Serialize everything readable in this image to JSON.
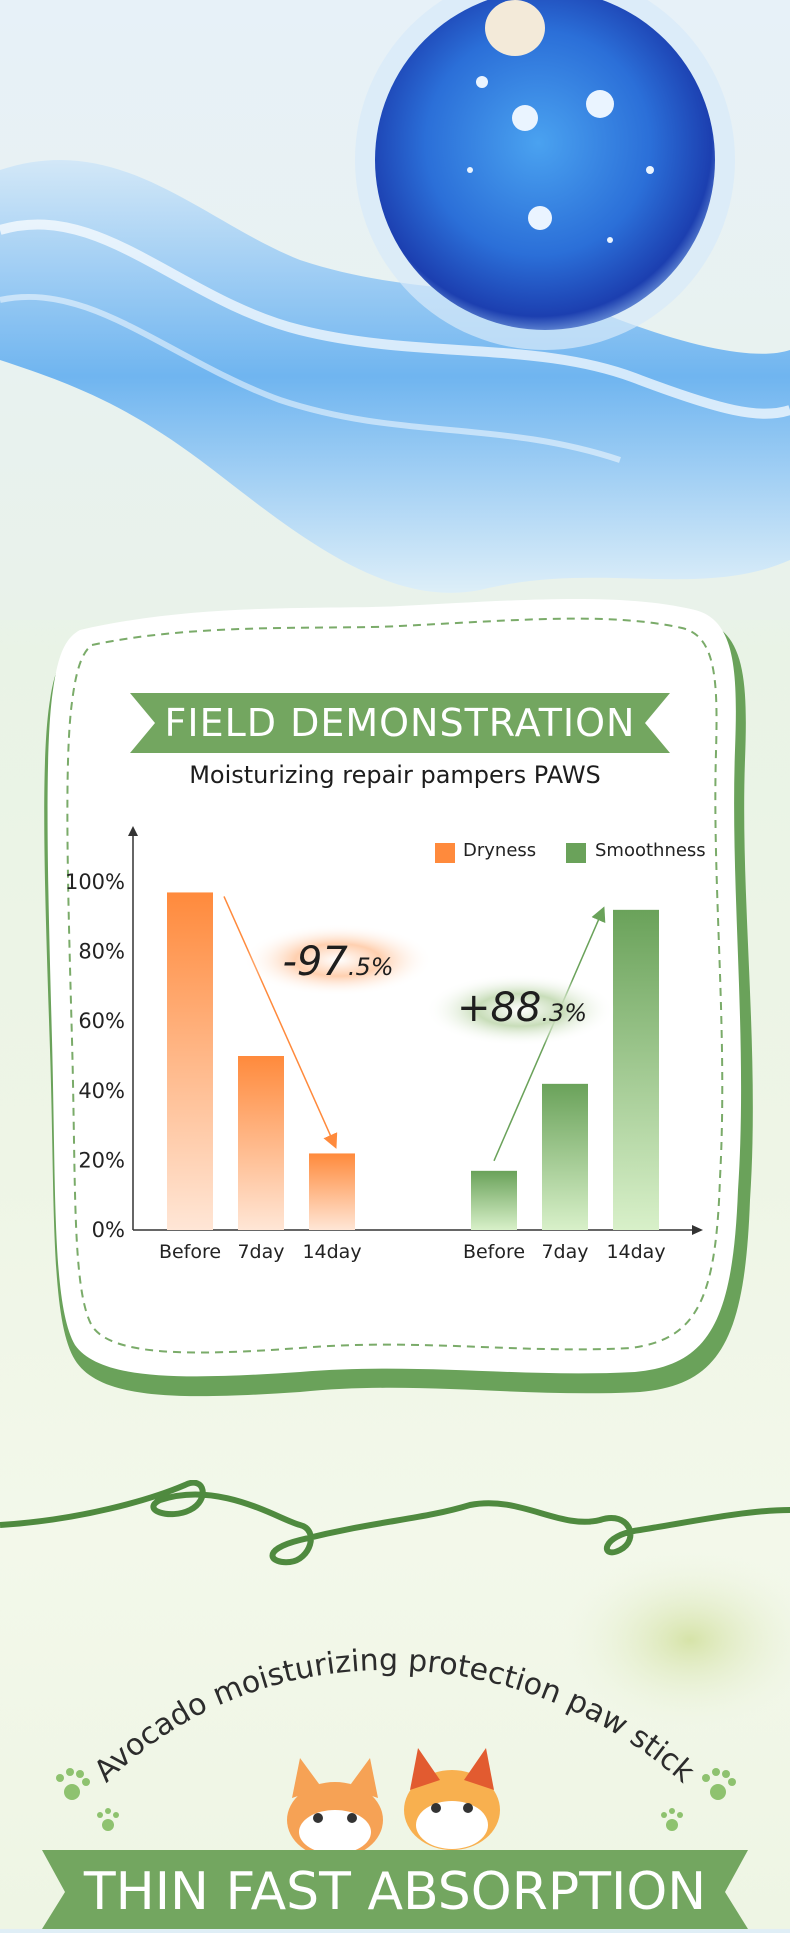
{
  "colors": {
    "orange": "#ff8a3c",
    "green": "#6aa25a",
    "banner": "#73a660",
    "dark_green": "#4f8a3f"
  },
  "header": {
    "banner_title": "FIELD DEMONSTRATION",
    "subtitle": "Moisturizing repair pampers PAWS"
  },
  "chart_data": [
    {
      "type": "bar",
      "title": "",
      "xlabel": "",
      "ylabel": "",
      "yticks": [
        "0%",
        "20%",
        "40%",
        "60%",
        "80%",
        "100%"
      ],
      "ylim": [
        0,
        100
      ],
      "categories": [
        "Before",
        "7day",
        "14day"
      ],
      "series": [
        {
          "name": "Dryness",
          "values": [
            97,
            50,
            22
          ]
        }
      ],
      "annotation": {
        "main": "-97",
        "decimal": ".5%"
      }
    },
    {
      "type": "bar",
      "title": "",
      "xlabel": "",
      "ylabel": "",
      "ylim": [
        0,
        100
      ],
      "categories": [
        "Before",
        "7day",
        "14day"
      ],
      "series": [
        {
          "name": "Smoothness",
          "values": [
            17,
            42,
            92
          ]
        }
      ],
      "annotation": {
        "main": "+88",
        "decimal": ".3%"
      }
    }
  ],
  "legend": [
    {
      "label": "Dryness",
      "color": "#ff8a3c"
    },
    {
      "label": "Smoothness",
      "color": "#6aa25a"
    }
  ],
  "footer": {
    "arc_text": "Avocado moisturizing protection paw stick",
    "banner_title": "THIN FAST ABSORPTION"
  }
}
